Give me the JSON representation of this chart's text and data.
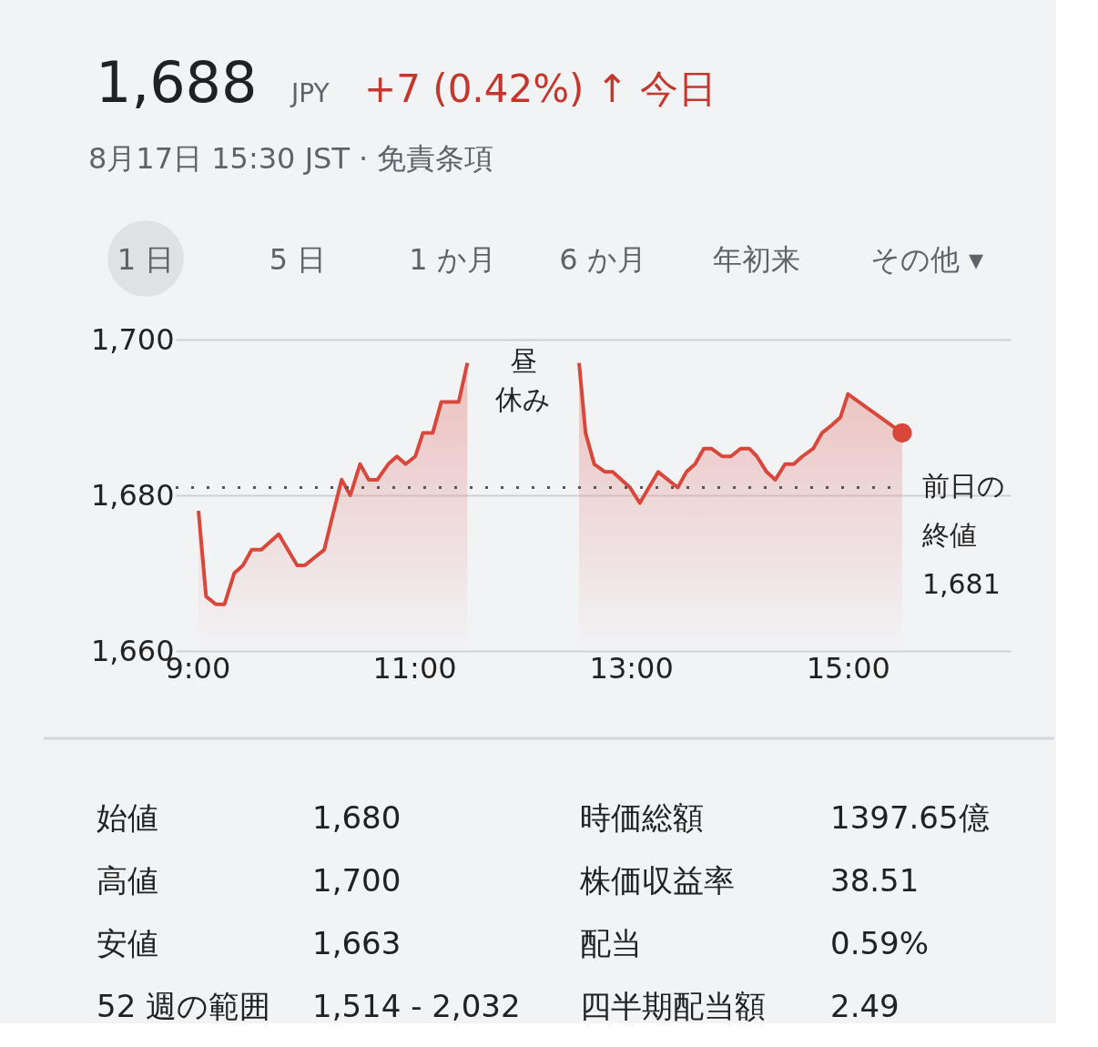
{
  "chart_data": {
    "type": "area",
    "title": "1,688",
    "subtitle": "8月17日 15:30 JST · 免責条項",
    "annotations": [
      "JPY",
      "+7 (0.42%) ↑ 今日",
      "昼休み",
      "1 日",
      "5 日",
      "1 か月",
      "6 か月",
      "年初来",
      "その他 ▾",
      "始値",
      "1,680",
      "時価総額",
      "1397.65億",
      "高値",
      "1,700",
      "株価収益率",
      "38.51",
      "安値",
      "1,663",
      "配当",
      "0.59%",
      "52 週の範囲",
      "1,514 - 2,032",
      "四半期配当額",
      "2.49"
    ],
    "series": [
      {
        "color": "#d9473b",
        "x": [
          9.01,
          9.08,
          9.17,
          9.25,
          9.34,
          9.42,
          9.5,
          9.59,
          9.75,
          9.92,
          9.99,
          10.17,
          10.24,
          10.33,
          10.41,
          10.5,
          10.58,
          10.66,
          10.76,
          10.84,
          10.92,
          11.01,
          11.08,
          11.17,
          11.25,
          11.41,
          11.49
        ],
        "values": [
          1678,
          1667,
          1666,
          1666,
          1670,
          1671,
          1673,
          1673,
          1675,
          1671,
          1671,
          1673,
          1677,
          1682,
          1680,
          1684,
          1682,
          1682,
          1684,
          1685,
          1684,
          1685,
          1688,
          1688,
          1692,
          1692,
          1697
        ]
      },
      {
        "color": "#d9473b",
        "x": [
          12.52,
          12.58,
          12.66,
          12.76,
          12.83,
          12.99,
          13.08,
          13.25,
          13.43,
          13.51,
          13.59,
          13.67,
          13.74,
          13.84,
          13.92,
          14.01,
          14.09,
          14.16,
          14.25,
          14.33,
          14.42,
          14.5,
          14.58,
          14.68,
          14.76,
          14.85,
          14.93,
          15.0,
          15.5
        ],
        "values": [
          1697,
          1688,
          1684,
          1683,
          1683,
          1681,
          1679,
          1683,
          1681,
          1683,
          1684,
          1686,
          1686,
          1685,
          1685,
          1686,
          1686,
          1685,
          1683,
          1682,
          1684,
          1684,
          1685,
          1686,
          1688,
          1689,
          1690,
          1693,
          1688
        ]
      }
    ],
    "xlim": [
      8.8,
      16.5
    ],
    "xticks": [
      {
        "value": 9,
        "label": "9:00"
      },
      {
        "value": 11,
        "label": "11:00"
      },
      {
        "value": 13,
        "label": "13:00"
      },
      {
        "value": 15,
        "label": "15:00"
      }
    ],
    "ylim": [
      1660,
      1700
    ],
    "yticks": [
      {
        "value": 1660,
        "label": "1,660"
      },
      {
        "value": 1680,
        "label": "1,680"
      },
      {
        "value": 1700,
        "label": "1,700"
      }
    ],
    "ref_lines": [
      {
        "axis": "y",
        "value": 1681,
        "label": "前日の終値 1,681",
        "color": "#555555",
        "line_style": "dotted"
      }
    ],
    "grid": "y"
  }
}
